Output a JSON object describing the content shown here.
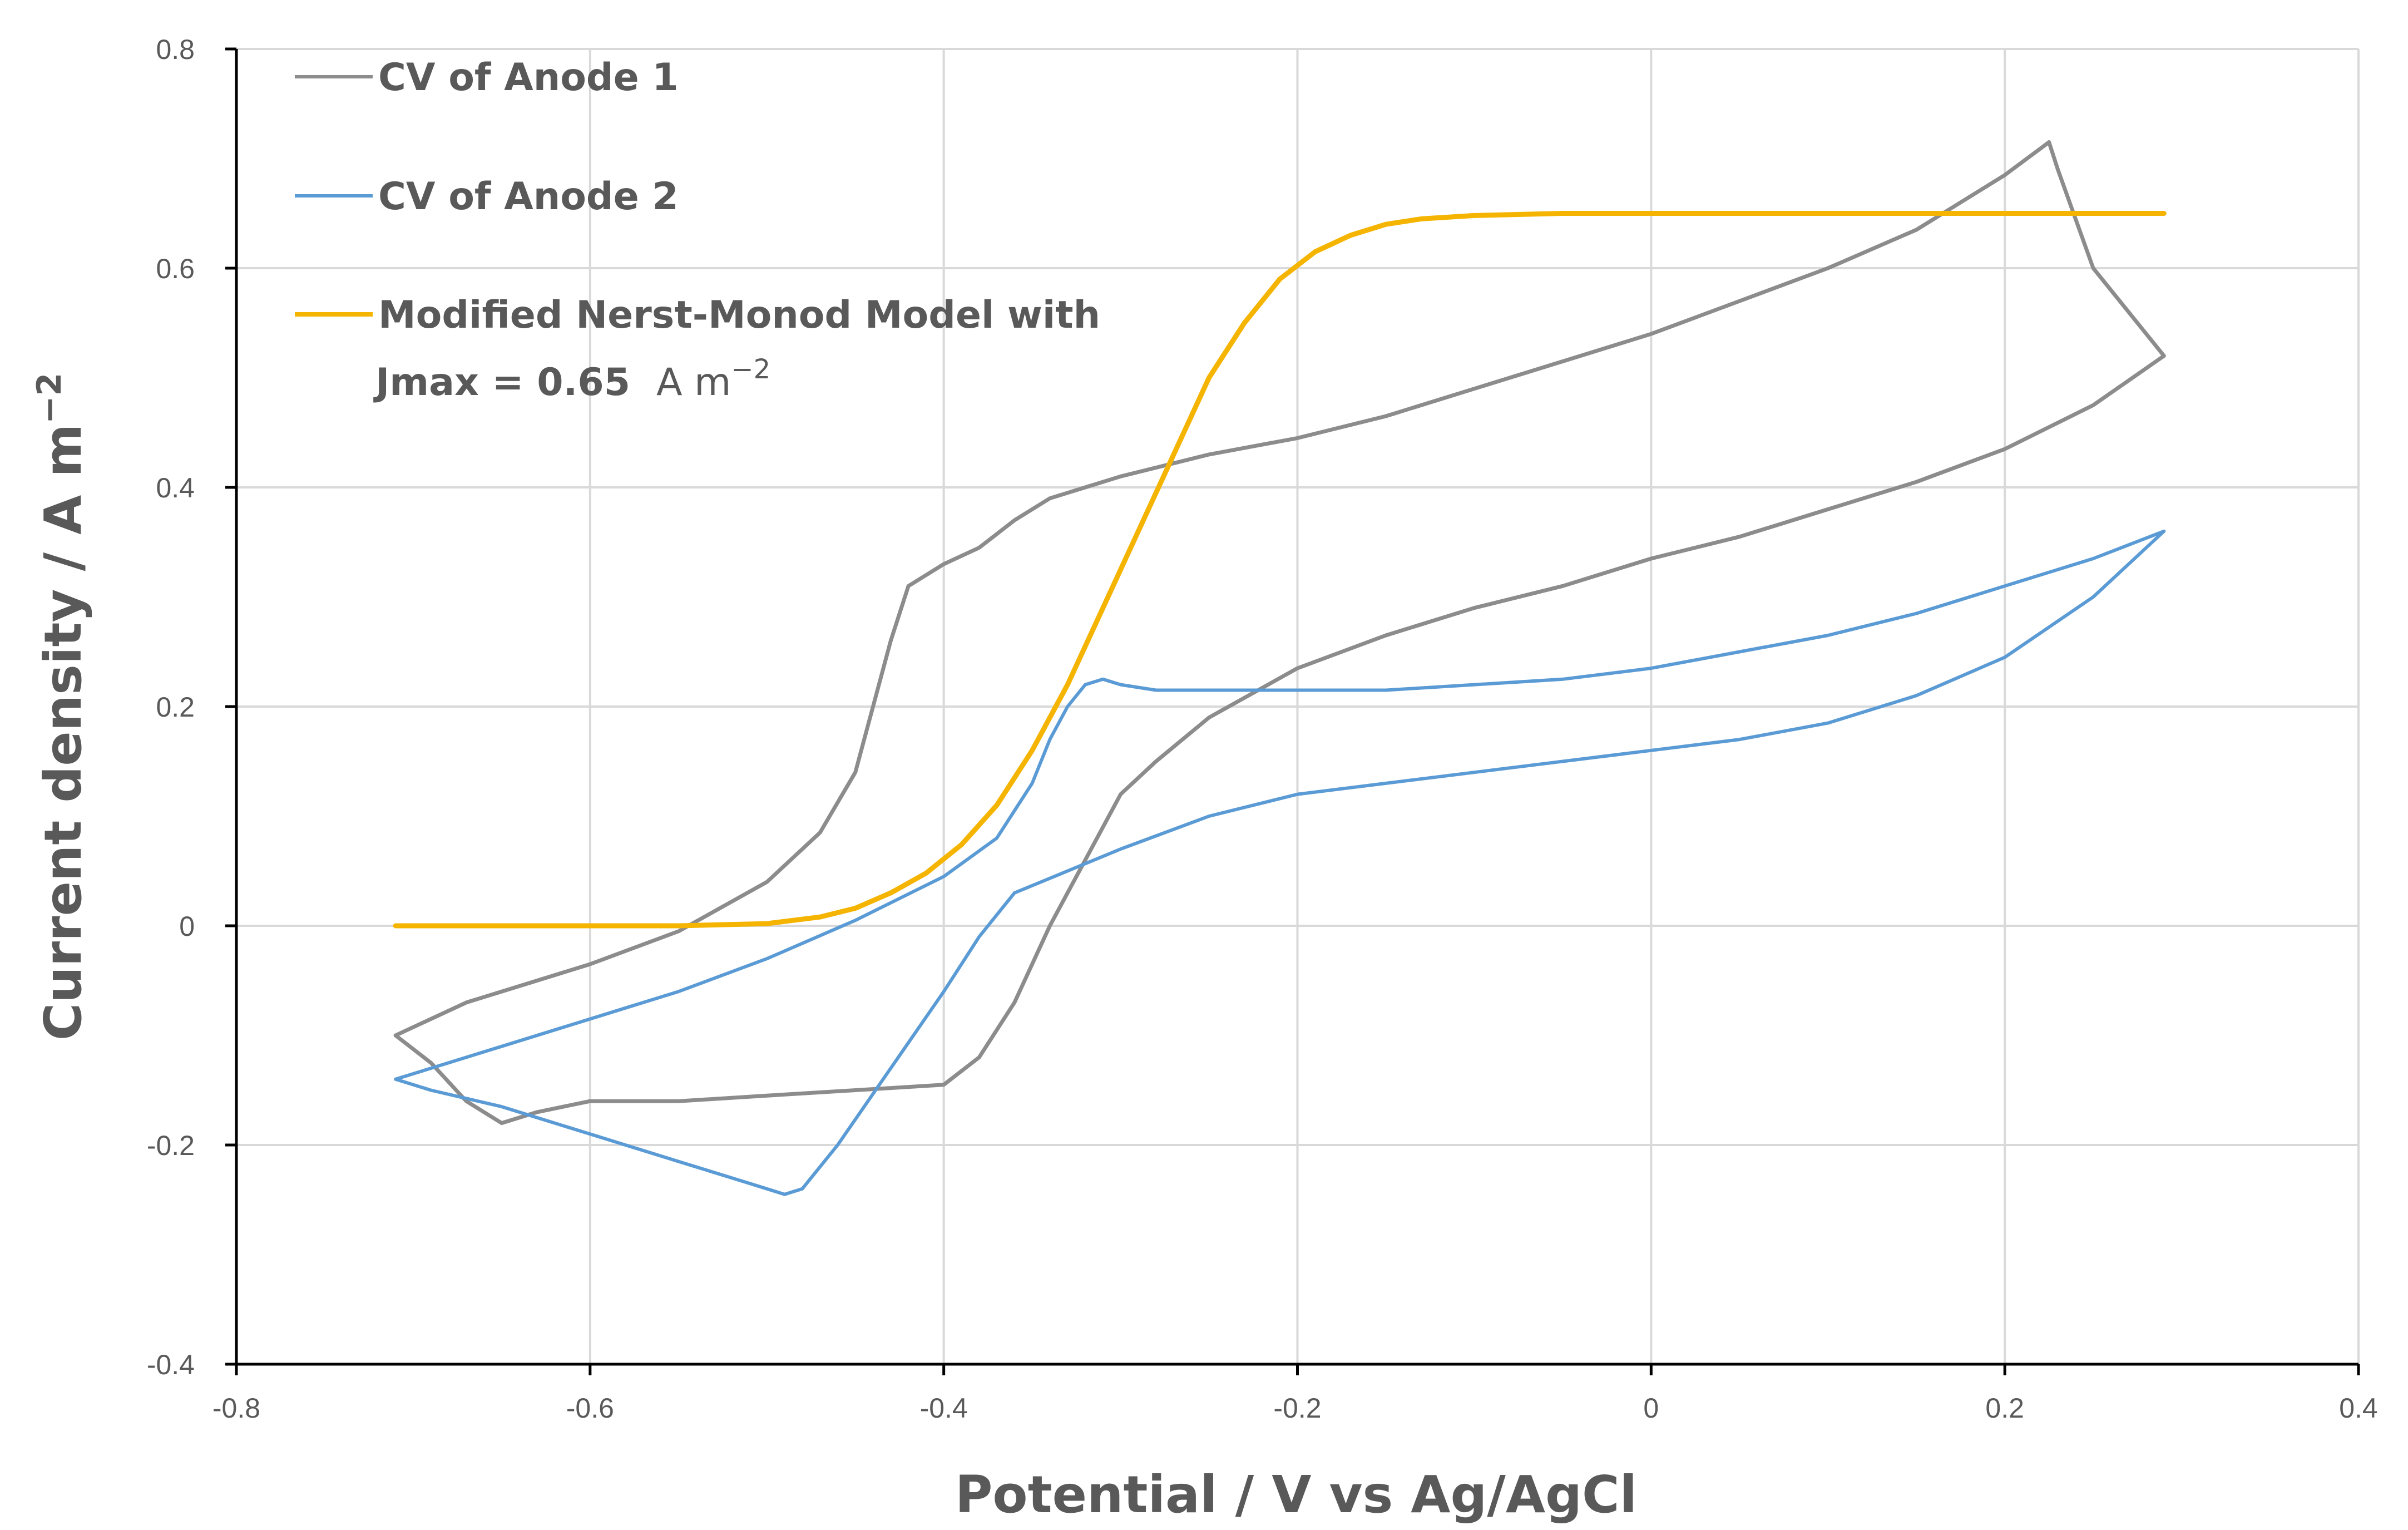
{
  "chart_data": {
    "type": "line",
    "xlabel": "Potential / V vs Ag/AgCl",
    "ylabel": "Current density / A m",
    "ylabel_sup": "−2",
    "xlim": [
      -0.8,
      0.4
    ],
    "ylim": [
      -0.4,
      0.8
    ],
    "xticks": [
      "-0.8",
      "-0.6",
      "-0.4",
      "-0.2",
      "0",
      "0.2",
      "0.4"
    ],
    "yticks": [
      "-0.4",
      "-0.2",
      "0",
      "0.2",
      "0.4",
      "0.6",
      "0.8"
    ],
    "grid": true,
    "legend_position": "top-left",
    "series": [
      {
        "name": "CV of Anode 1",
        "color": "#8c8c8c",
        "x": [
          -0.71,
          -0.67,
          -0.6,
          -0.55,
          -0.5,
          -0.47,
          -0.45,
          -0.44,
          -0.43,
          -0.42,
          -0.4,
          -0.38,
          -0.36,
          -0.34,
          -0.32,
          -0.3,
          -0.25,
          -0.2,
          -0.15,
          -0.1,
          -0.05,
          0.0,
          0.05,
          0.1,
          0.15,
          0.2,
          0.225,
          0.23,
          0.25,
          0.29,
          0.25,
          0.2,
          0.15,
          0.1,
          0.05,
          0.0,
          -0.05,
          -0.1,
          -0.15,
          -0.2,
          -0.25,
          -0.28,
          -0.3,
          -0.32,
          -0.34,
          -0.36,
          -0.38,
          -0.4,
          -0.45,
          -0.5,
          -0.55,
          -0.6,
          -0.63,
          -0.65,
          -0.67,
          -0.69,
          -0.71
        ],
        "y": [
          -0.1,
          -0.07,
          -0.035,
          -0.005,
          0.04,
          0.085,
          0.14,
          0.2,
          0.26,
          0.31,
          0.33,
          0.345,
          0.37,
          0.39,
          0.4,
          0.41,
          0.43,
          0.445,
          0.465,
          0.49,
          0.515,
          0.54,
          0.57,
          0.6,
          0.635,
          0.685,
          0.715,
          0.69,
          0.6,
          0.52,
          0.475,
          0.435,
          0.405,
          0.38,
          0.355,
          0.335,
          0.31,
          0.29,
          0.265,
          0.235,
          0.19,
          0.15,
          0.12,
          0.06,
          0.0,
          -0.07,
          -0.12,
          -0.145,
          -0.15,
          -0.155,
          -0.16,
          -0.16,
          -0.17,
          -0.18,
          -0.16,
          -0.125,
          -0.1
        ]
      },
      {
        "name": "CV of Anode 2",
        "color": "#5b9bd5",
        "x": [
          -0.71,
          -0.65,
          -0.6,
          -0.55,
          -0.5,
          -0.45,
          -0.4,
          -0.37,
          -0.35,
          -0.34,
          -0.33,
          -0.32,
          -0.31,
          -0.3,
          -0.28,
          -0.25,
          -0.2,
          -0.15,
          -0.1,
          -0.05,
          0.0,
          0.05,
          0.1,
          0.15,
          0.2,
          0.25,
          0.29,
          0.27,
          0.25,
          0.2,
          0.15,
          0.1,
          0.05,
          0.0,
          -0.05,
          -0.1,
          -0.15,
          -0.2,
          -0.25,
          -0.3,
          -0.33,
          -0.36,
          -0.38,
          -0.4,
          -0.43,
          -0.46,
          -0.48,
          -0.49,
          -0.51,
          -0.55,
          -0.6,
          -0.65,
          -0.69,
          -0.71
        ],
        "y": [
          -0.14,
          -0.11,
          -0.085,
          -0.06,
          -0.03,
          0.005,
          0.045,
          0.08,
          0.13,
          0.17,
          0.2,
          0.22,
          0.225,
          0.22,
          0.215,
          0.215,
          0.215,
          0.215,
          0.22,
          0.225,
          0.235,
          0.25,
          0.265,
          0.285,
          0.31,
          0.335,
          0.36,
          0.33,
          0.3,
          0.245,
          0.21,
          0.185,
          0.17,
          0.16,
          0.15,
          0.14,
          0.13,
          0.12,
          0.1,
          0.07,
          0.05,
          0.03,
          -0.01,
          -0.06,
          -0.13,
          -0.2,
          -0.24,
          -0.245,
          -0.235,
          -0.215,
          -0.19,
          -0.165,
          -0.15,
          -0.14
        ]
      },
      {
        "name": "Modified Nerst-Monod Model with",
        "name_line2": "Jmax = 0.65",
        "name_unit": "A m",
        "name_unit_sup": "−2",
        "color": "#f4b400",
        "x": [
          -0.71,
          -0.65,
          -0.6,
          -0.55,
          -0.5,
          -0.47,
          -0.45,
          -0.43,
          -0.41,
          -0.39,
          -0.37,
          -0.35,
          -0.33,
          -0.31,
          -0.29,
          -0.27,
          -0.25,
          -0.23,
          -0.21,
          -0.19,
          -0.17,
          -0.15,
          -0.13,
          -0.1,
          -0.05,
          0.0,
          0.1,
          0.2,
          0.29
        ],
        "y": [
          0.0,
          0.0,
          0.0,
          0.0,
          0.002,
          0.008,
          0.016,
          0.03,
          0.048,
          0.074,
          0.11,
          0.16,
          0.22,
          0.29,
          0.36,
          0.43,
          0.5,
          0.55,
          0.59,
          0.615,
          0.63,
          0.64,
          0.645,
          0.648,
          0.65,
          0.65,
          0.65,
          0.65,
          0.65
        ]
      }
    ]
  }
}
